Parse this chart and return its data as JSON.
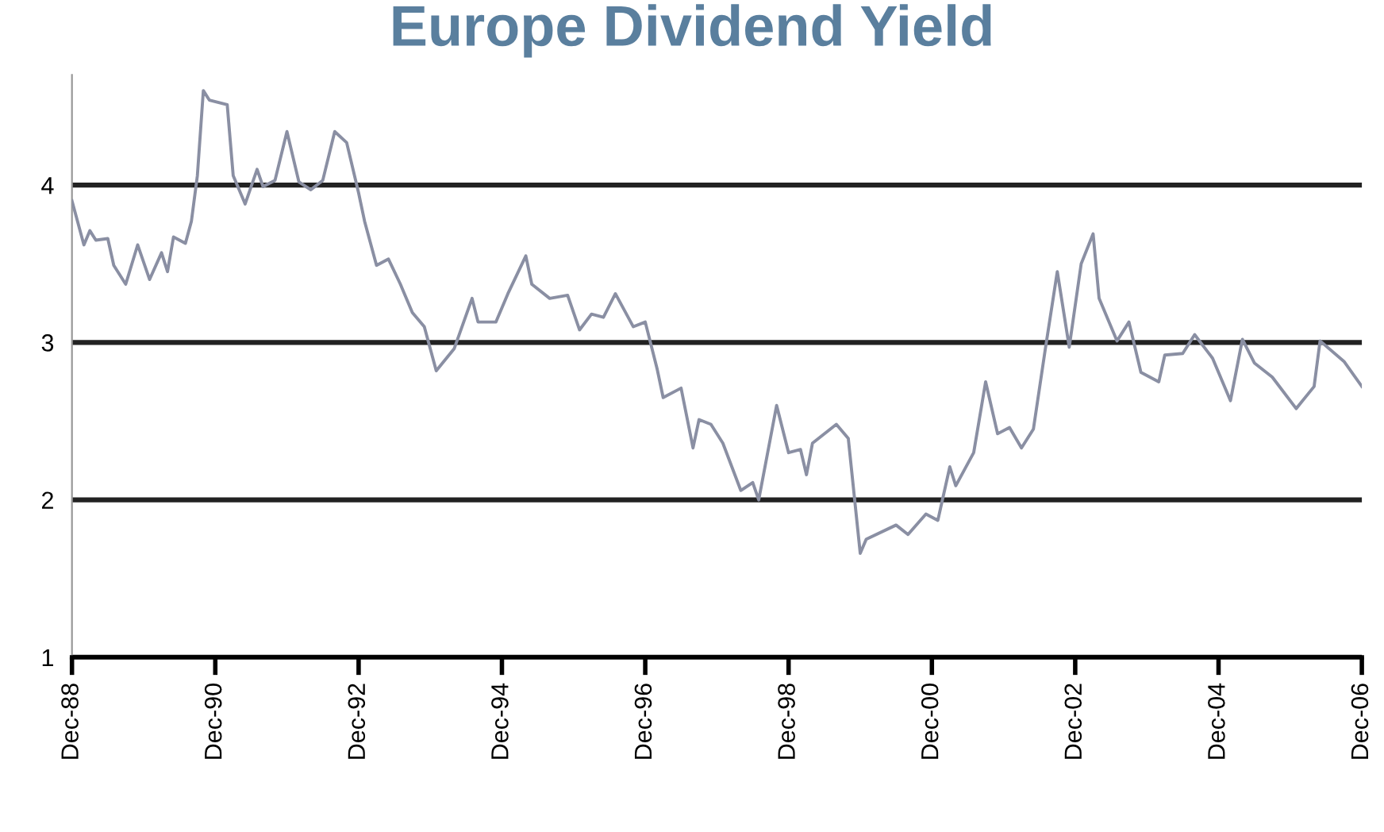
{
  "chart_data": {
    "type": "line",
    "title": "Europe Dividend Yield",
    "grid": "y",
    "color": "#8a8fa3",
    "x": [
      "1988-12",
      "1989-02",
      "1989-03",
      "1989-04",
      "1989-06",
      "1989-07",
      "1989-09",
      "1989-11",
      "1990-01",
      "1990-03",
      "1990-04",
      "1990-05",
      "1990-07",
      "1990-08",
      "1990-09",
      "1990-10",
      "1990-11",
      "1991-02",
      "1991-03",
      "1991-05",
      "1991-07",
      "1991-08",
      "1991-10",
      "1991-12",
      "1992-02",
      "1992-04",
      "1992-06",
      "1992-08",
      "1992-10",
      "1992-12",
      "1993-01",
      "1993-03",
      "1993-05",
      "1993-07",
      "1993-09",
      "1993-11",
      "1994-01",
      "1994-04",
      "1994-07",
      "1994-08",
      "1994-11",
      "1995-01",
      "1995-04",
      "1995-05",
      "1995-08",
      "1995-11",
      "1996-01",
      "1996-03",
      "1996-05",
      "1996-07",
      "1996-10",
      "1996-12",
      "1997-02",
      "1997-03",
      "1997-06",
      "1997-08",
      "1997-09",
      "1997-11",
      "1998-01",
      "1998-04",
      "1998-06",
      "1998-07",
      "1998-10",
      "1998-12",
      "1999-02",
      "1999-03",
      "1999-04",
      "1999-08",
      "1999-10",
      "1999-12",
      "2000-01",
      "2000-06",
      "2000-08",
      "2000-11",
      "2001-01",
      "2001-03",
      "2001-04",
      "2001-07",
      "2001-09",
      "2001-11",
      "2002-01",
      "2002-03",
      "2002-05",
      "2002-07",
      "2002-09",
      "2002-11",
      "2003-01",
      "2003-03",
      "2003-04",
      "2003-07",
      "2003-09",
      "2003-11",
      "2004-02",
      "2004-03",
      "2004-06",
      "2004-08",
      "2004-11",
      "2005-02",
      "2005-04",
      "2005-06",
      "2005-09",
      "2006-01",
      "2006-04",
      "2006-05",
      "2006-09",
      "2006-12"
    ],
    "values": [
      3.9,
      3.62,
      3.71,
      3.65,
      3.66,
      3.49,
      3.37,
      3.62,
      3.4,
      3.57,
      3.45,
      3.67,
      3.63,
      3.77,
      4.06,
      4.6,
      4.54,
      4.51,
      4.06,
      3.88,
      4.1,
      3.99,
      4.03,
      4.34,
      4.02,
      3.97,
      4.03,
      4.34,
      4.27,
      3.95,
      3.77,
      3.49,
      3.53,
      3.37,
      3.19,
      3.1,
      2.82,
      2.96,
      3.28,
      3.13,
      3.13,
      3.31,
      3.55,
      3.37,
      3.28,
      3.3,
      3.08,
      3.18,
      3.16,
      3.31,
      3.1,
      3.13,
      2.83,
      2.65,
      2.71,
      2.33,
      2.51,
      2.48,
      2.36,
      2.06,
      2.11,
      2.0,
      2.6,
      2.3,
      2.32,
      2.16,
      2.36,
      2.48,
      2.39,
      1.66,
      1.75,
      1.84,
      1.78,
      1.91,
      1.87,
      2.21,
      2.09,
      2.3,
      2.75,
      2.42,
      2.46,
      2.33,
      2.45,
      2.96,
      3.45,
      2.97,
      3.5,
      3.69,
      3.28,
      3.01,
      3.13,
      2.81,
      2.75,
      2.92,
      2.93,
      3.05,
      2.9,
      2.63,
      3.02,
      2.87,
      2.78,
      2.58,
      2.72,
      3.01,
      2.88,
      2.72
    ],
    "xlim": [
      "1988-12",
      "2006-12"
    ],
    "xticks": [
      {
        "value": "1988-12",
        "label": "Dec-88"
      },
      {
        "value": "1990-12",
        "label": "Dec-90"
      },
      {
        "value": "1992-12",
        "label": "Dec-92"
      },
      {
        "value": "1994-12",
        "label": "Dec-94"
      },
      {
        "value": "1996-12",
        "label": "Dec-96"
      },
      {
        "value": "1998-12",
        "label": "Dec-98"
      },
      {
        "value": "2000-12",
        "label": "Dec-00"
      },
      {
        "value": "2002-12",
        "label": "Dec-02"
      },
      {
        "value": "2004-12",
        "label": "Dec-04"
      },
      {
        "value": "2006-12",
        "label": "Dec-06"
      }
    ],
    "ylim": [
      1,
      4.7
    ],
    "yticks": [
      1,
      2,
      3,
      4
    ]
  }
}
